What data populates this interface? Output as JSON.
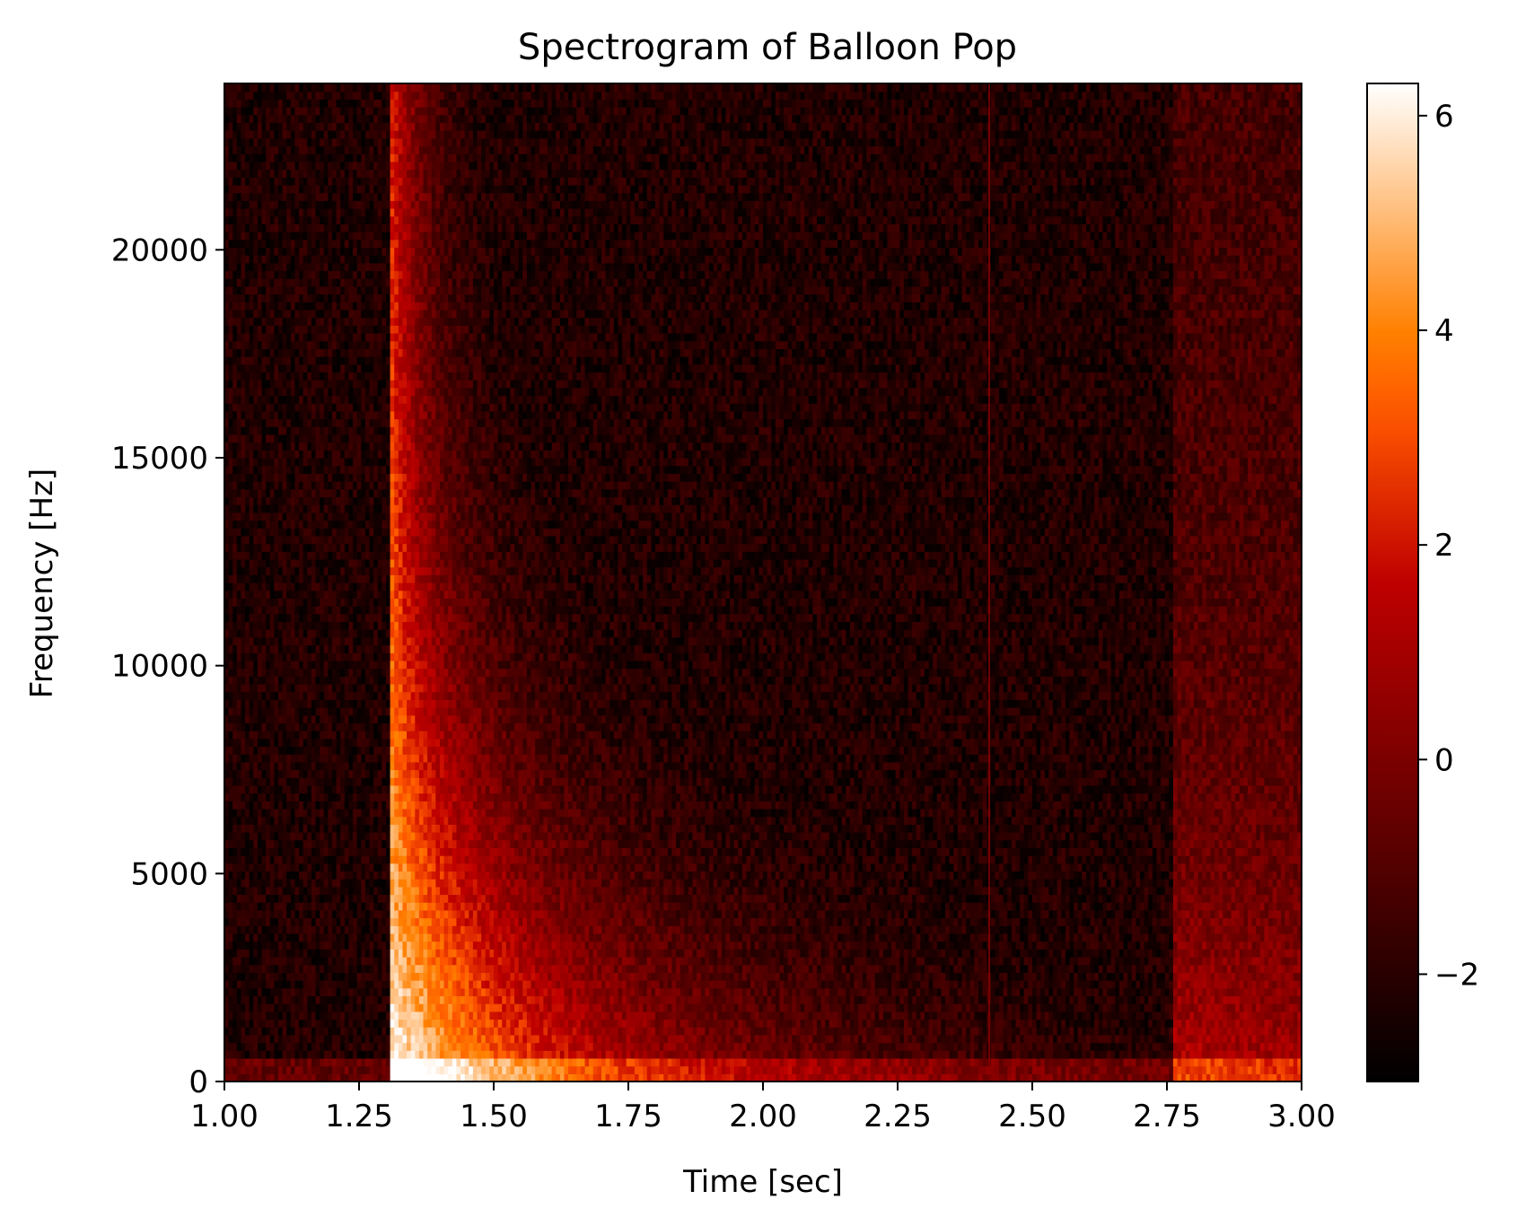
{
  "chart_data": {
    "type": "heatmap",
    "title": "Spectrogram of Balloon Pop",
    "xlabel": "Time [sec]",
    "ylabel": "Frequency [Hz]",
    "xlim": [
      1.0,
      3.0
    ],
    "ylim": [
      0,
      24000
    ],
    "x_ticks": [
      1.0,
      1.25,
      1.5,
      1.75,
      2.0,
      2.25,
      2.5,
      2.75,
      3.0
    ],
    "x_tick_labels": [
      "1.00",
      "1.25",
      "1.50",
      "1.75",
      "2.00",
      "2.25",
      "2.50",
      "2.75",
      "3.00"
    ],
    "y_ticks": [
      0,
      5000,
      10000,
      15000,
      20000
    ],
    "y_tick_labels": [
      "0",
      "5000",
      "10000",
      "15000",
      "20000"
    ],
    "colormap": "gist_heat",
    "colorbar": {
      "range": [
        -3.0,
        6.3
      ],
      "ticks": [
        -2,
        0,
        2,
        4,
        6
      ],
      "tick_labels": [
        "−2",
        "0",
        "2",
        "4",
        "6"
      ]
    },
    "grid": false,
    "events": [
      {
        "name": "pop",
        "onset_sec": 1.31,
        "peak_value": 6.2
      },
      {
        "name": "line_artifact",
        "time_sec": 2.42
      },
      {
        "name": "echo",
        "onset_sec": 2.76,
        "peak_value": 1.5
      }
    ]
  }
}
